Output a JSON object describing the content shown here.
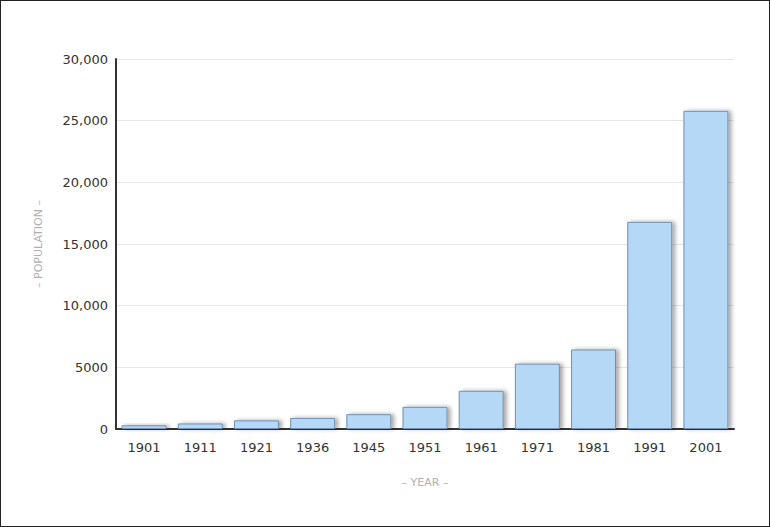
{
  "chart_data": {
    "type": "bar",
    "x_label": "– YEAR –",
    "y_label": "– POPULATION –",
    "categories": [
      "1901",
      "1911",
      "1921",
      "1936",
      "1945",
      "1951",
      "1961",
      "1971",
      "1981",
      "1991",
      "2001"
    ],
    "values": [
      300,
      450,
      700,
      900,
      1200,
      1800,
      3100,
      5300,
      6450,
      16800,
      25800
    ],
    "color": "#b5d8f7",
    "ylim": [
      0,
      30000
    ],
    "yticks": [
      0,
      5000,
      {
        "value": 10000,
        "label": "10,000"
      },
      {
        "value": 15000,
        "label": "15,000"
      },
      {
        "value": 20000,
        "label": "20,000"
      },
      {
        "value": 25000,
        "label": "25,000"
      },
      {
        "value": 30000,
        "label": "30,000"
      }
    ],
    "grid": true
  }
}
